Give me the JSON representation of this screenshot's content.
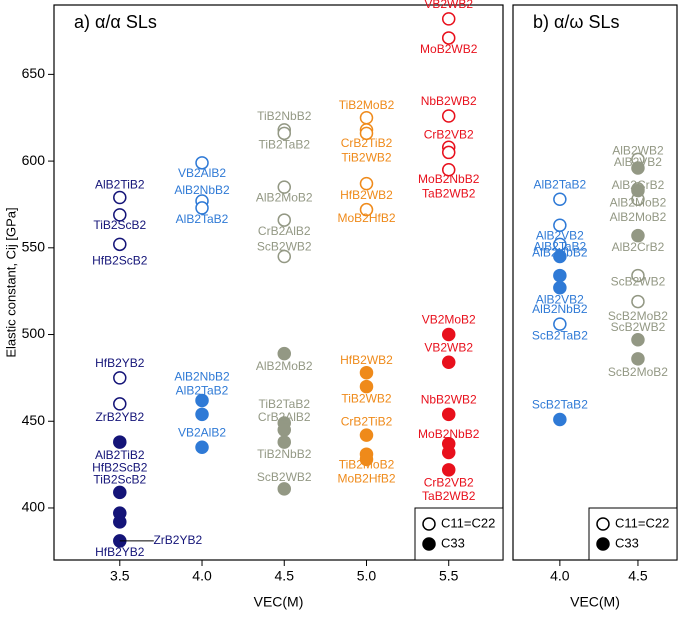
{
  "chart_data": [
    {
      "type": "scatter",
      "title": "a) α/α SLs",
      "xlabel": "VEC(M)",
      "ylabel": "Elastic constant, Cij [GPa]",
      "xlim": [
        3.1,
        5.83
      ],
      "ylim": [
        370,
        690
      ],
      "xticks": [
        3.5,
        {
          "value": 4,
          "label": "4.0"
        },
        4.5,
        {
          "value": 5,
          "label": "5.0"
        },
        5.5
      ],
      "yticks": [
        400,
        450,
        500,
        550,
        600,
        650
      ],
      "colors": {
        "3.5": "#141478",
        "4": "#2f7ad6",
        "4.5": "#939884",
        "5": "#ef8a1a",
        "5.5": "#e8101c"
      },
      "legend": "lower right",
      "grid": false,
      "series": [
        {
          "name": "C11=C22",
          "filled": false,
          "x": [
            3.5,
            3.5,
            3.5,
            3.5,
            3.5,
            4,
            4,
            4,
            4.5,
            4.5,
            4.5,
            4.5,
            4.5,
            5,
            5,
            5,
            5,
            5,
            5.5,
            5.5,
            5.5,
            5.5,
            5.5,
            5.5
          ],
          "values": [
            579,
            569,
            552,
            475,
            460,
            599,
            577,
            573,
            618,
            616,
            585,
            566,
            545,
            625,
            618,
            616,
            587,
            572,
            682,
            671,
            626,
            608,
            605,
            595
          ],
          "labels": [
            "AlB2TiB2",
            "TiB2ScB2",
            "HfB2ScB2",
            "HfB2YB2",
            "ZrB2YB2",
            "VB2AlB2",
            "AlB2NbB2",
            "AlB2TaB2",
            "TiB2NbB2",
            "TiB2TaB2",
            "AlB2MoB2",
            "CrB2AlB2",
            "ScB2WB2",
            "TiB2MoB2",
            "CrB2TiB2",
            "TiB2WB2",
            "HfB2WB2",
            "MoB2HfB2",
            "VB2WB2",
            "MoB2WB2",
            "NbB2WB2",
            "CrB2VB2",
            "TaB2WB2",
            "MoB2NbB2"
          ]
        },
        {
          "name": "C33",
          "filled": true,
          "x": [
            3.5,
            3.5,
            3.5,
            3.5,
            3.5,
            4,
            4,
            4,
            4.5,
            4.5,
            4.5,
            4.5,
            4.5,
            5,
            5,
            5,
            5,
            5,
            5.5,
            5.5,
            5.5,
            5.5,
            5.5,
            5.5
          ],
          "values": [
            438,
            409,
            397,
            392,
            381,
            462,
            454,
            435,
            489,
            449,
            445,
            438,
            411,
            478,
            470,
            442,
            431,
            428,
            500,
            484,
            454,
            437,
            432,
            422
          ],
          "labels": [
            "AlB2TiB2",
            "HfB2ScB2",
            "TiB2ScB2",
            "HfB2YB2",
            "ZrB2YB2",
            "AlB2NbB2",
            "AlB2TaB2",
            "VB2AlB2",
            "AlB2MoB2",
            "TiB2TaB2",
            "CrB2AlB2",
            "TiB2NbB2",
            "ScB2WB2",
            "HfB2WB2",
            "TiB2WB2",
            "CrB2TiB2",
            "TiB2MoB2",
            "MoB2HfB2",
            "VB2MoB2",
            "VB2WB2",
            "NbB2WB2",
            "MoB2NbB2",
            "CrB2VB2",
            "TaB2WB2"
          ]
        }
      ]
    },
    {
      "type": "scatter",
      "title": "b) α/ω SLs",
      "xlabel": "VEC(M)",
      "xlim": [
        3.7,
        4.75
      ],
      "ylim": [
        370,
        690
      ],
      "xticks": [
        {
          "value": 4,
          "label": "4.0"
        },
        4.5
      ],
      "colors": {
        "4": "#2f7ad6",
        "4.5": "#939884"
      },
      "legend": "lower right",
      "grid": false,
      "series": [
        {
          "name": "C11=C22",
          "filled": false,
          "x": [
            4,
            4,
            4,
            4,
            4.5,
            4.5,
            4.5,
            4.5,
            4.5
          ],
          "values": [
            578,
            563,
            552,
            506,
            601,
            584,
            578,
            534,
            519
          ],
          "labels": [
            "AlB2TaB2",
            "AlB2VB2",
            "AlB2NbB2",
            "ScB2TaB2",
            "AlB2WB2",
            "AlB2CrB2",
            "AlB2MoB2",
            "ScB2WB2",
            "ScB2MoB2"
          ]
        },
        {
          "name": "C33",
          "filled": true,
          "x": [
            4,
            4,
            4,
            4,
            4.5,
            4.5,
            4.5,
            4.5,
            4.5
          ],
          "values": [
            545,
            534,
            527,
            451,
            596,
            583,
            557,
            497,
            486
          ],
          "labels": [
            "AlB2TaB2",
            "AlB2VB2",
            "AlB2NbB2",
            "ScB2TaB2",
            "AlB2VB2",
            "AlB2MoB2",
            "AlB2CrB2",
            "ScB2WB2",
            "ScB2MoB2"
          ]
        }
      ]
    }
  ]
}
